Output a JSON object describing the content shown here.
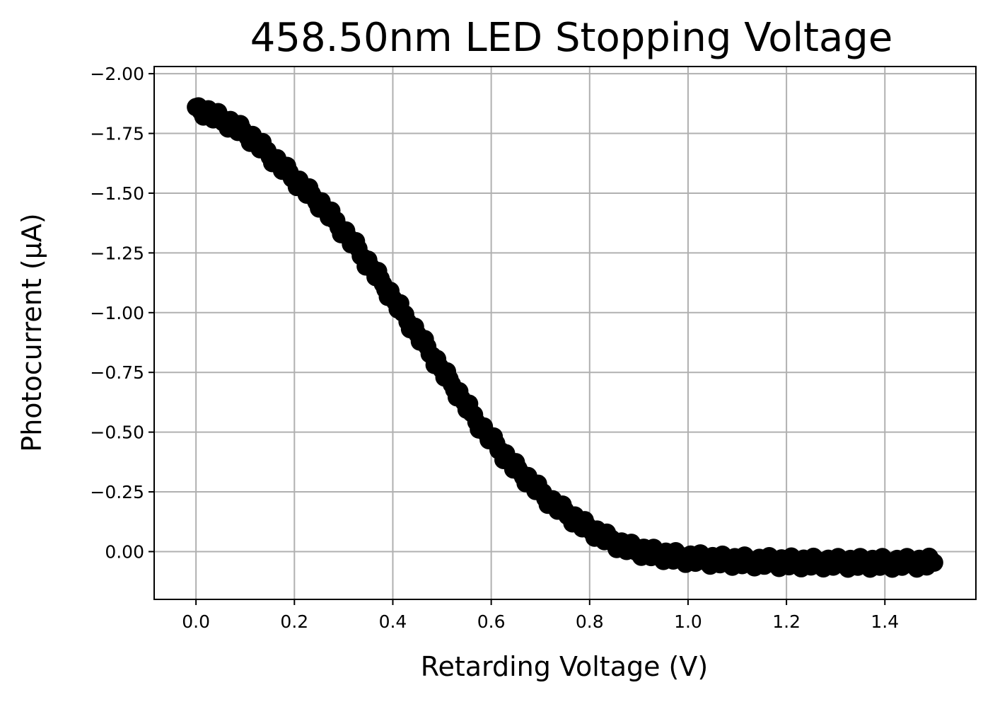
{
  "chart_data": {
    "type": "scatter",
    "title": "458.50nm LED Stopping Voltage",
    "xlabel": "Retarding Voltage (V)",
    "ylabel": "Photocurrent (µA)",
    "xlim": [
      -0.085,
      1.585
    ],
    "ylim": [
      0.2,
      -2.03
    ],
    "y_inverted": true,
    "grid": true,
    "marker_color": "#000000",
    "grid_color": "#b0b0b0",
    "x_ticks": [
      {
        "value": 0.0,
        "label": "0.0"
      },
      {
        "value": 0.2,
        "label": "0.2"
      },
      {
        "value": 0.4,
        "label": "0.4"
      },
      {
        "value": 0.6,
        "label": "0.6"
      },
      {
        "value": 0.8,
        "label": "0.8"
      },
      {
        "value": 1.0,
        "label": "1.0"
      },
      {
        "value": 1.2,
        "label": "1.2"
      },
      {
        "value": 1.4,
        "label": "1.4"
      }
    ],
    "y_ticks": [
      {
        "value": -2.0,
        "label": "−2.00"
      },
      {
        "value": -1.75,
        "label": "−1.75"
      },
      {
        "value": -1.5,
        "label": "−1.50"
      },
      {
        "value": -1.25,
        "label": "−1.25"
      },
      {
        "value": -1.0,
        "label": "−1.00"
      },
      {
        "value": -0.75,
        "label": "−0.75"
      },
      {
        "value": -0.5,
        "label": "−0.50"
      },
      {
        "value": -0.25,
        "label": "−0.25"
      },
      {
        "value": 0.0,
        "label": "0.00"
      }
    ],
    "series": [
      {
        "points": [
          [
            0.0,
            -1.86
          ],
          [
            0.02,
            -1.84
          ],
          [
            0.04,
            -1.82
          ],
          [
            0.06,
            -1.8
          ],
          [
            0.08,
            -1.78
          ],
          [
            0.1,
            -1.75
          ],
          [
            0.12,
            -1.72
          ],
          [
            0.14,
            -1.68
          ],
          [
            0.16,
            -1.64
          ],
          [
            0.18,
            -1.6
          ],
          [
            0.2,
            -1.56
          ],
          [
            0.22,
            -1.52
          ],
          [
            0.24,
            -1.48
          ],
          [
            0.26,
            -1.44
          ],
          [
            0.28,
            -1.39
          ],
          [
            0.3,
            -1.34
          ],
          [
            0.32,
            -1.29
          ],
          [
            0.34,
            -1.23
          ],
          [
            0.36,
            -1.18
          ],
          [
            0.38,
            -1.12
          ],
          [
            0.4,
            -1.06
          ],
          [
            0.42,
            -1.0
          ],
          [
            0.44,
            -0.94
          ],
          [
            0.46,
            -0.88
          ],
          [
            0.48,
            -0.82
          ],
          [
            0.5,
            -0.76
          ],
          [
            0.52,
            -0.7
          ],
          [
            0.54,
            -0.64
          ],
          [
            0.56,
            -0.58
          ],
          [
            0.58,
            -0.52
          ],
          [
            0.6,
            -0.47
          ],
          [
            0.62,
            -0.42
          ],
          [
            0.64,
            -0.37
          ],
          [
            0.66,
            -0.33
          ],
          [
            0.68,
            -0.29
          ],
          [
            0.7,
            -0.25
          ],
          [
            0.72,
            -0.21
          ],
          [
            0.74,
            -0.18
          ],
          [
            0.76,
            -0.15
          ],
          [
            0.78,
            -0.12
          ],
          [
            0.8,
            -0.095
          ],
          [
            0.82,
            -0.07
          ],
          [
            0.84,
            -0.05
          ],
          [
            0.86,
            -0.03
          ],
          [
            0.88,
            -0.015
          ],
          [
            0.9,
            -0.005
          ],
          [
            0.92,
            0.005
          ],
          [
            0.94,
            0.012
          ],
          [
            0.96,
            0.018
          ],
          [
            0.98,
            0.024
          ],
          [
            1.0,
            0.028
          ],
          [
            1.02,
            0.031
          ],
          [
            1.04,
            0.034
          ],
          [
            1.06,
            0.036
          ],
          [
            1.08,
            0.038
          ],
          [
            1.1,
            0.04
          ],
          [
            1.12,
            0.041
          ],
          [
            1.14,
            0.042
          ],
          [
            1.16,
            0.043
          ],
          [
            1.18,
            0.044
          ],
          [
            1.2,
            0.045
          ],
          [
            1.22,
            0.045
          ],
          [
            1.24,
            0.046
          ],
          [
            1.26,
            0.046
          ],
          [
            1.28,
            0.046
          ],
          [
            1.3,
            0.047
          ],
          [
            1.32,
            0.047
          ],
          [
            1.34,
            0.047
          ],
          [
            1.36,
            0.047
          ],
          [
            1.38,
            0.047
          ],
          [
            1.4,
            0.047
          ],
          [
            1.42,
            0.047
          ],
          [
            1.44,
            0.047
          ],
          [
            1.46,
            0.047
          ],
          [
            1.48,
            0.046
          ],
          [
            1.5,
            0.046
          ]
        ]
      }
    ]
  }
}
